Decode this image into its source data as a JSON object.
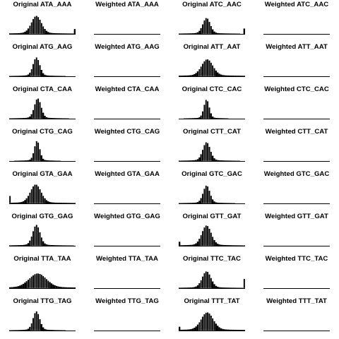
{
  "chart_data": {
    "type": "bar",
    "grid": false,
    "x_domain": [
      0,
      1
    ],
    "column_prefixes": [
      "Original",
      "Weighted",
      "Original",
      "Weighted"
    ],
    "codon_pairs": [
      [
        "ATA_AAA",
        "ATC_AAC"
      ],
      [
        "ATG_AAG",
        "ATT_AAT"
      ],
      [
        "CTA_CAA",
        "CTC_CAC"
      ],
      [
        "CTG_CAG",
        "CTT_CAT"
      ],
      [
        "GTA_GAA",
        "GTC_GAC"
      ],
      [
        "GTG_GAG",
        "GTT_GAT"
      ],
      [
        "TTA_TAA",
        "TTC_TAC"
      ],
      [
        "TTG_TAG",
        "TTT_TAT"
      ]
    ],
    "panels": [
      {
        "title": "Original ATA_AAA",
        "kind": "original",
        "peak": 0.41,
        "width": 0.075,
        "height": 0.62,
        "base": 0.006,
        "left_spike": 0,
        "right_spike": 0.18
      },
      {
        "title": "Weighted ATA_AAA",
        "kind": "weighted"
      },
      {
        "title": "Original ATC_AAC",
        "kind": "original",
        "peak": 0.42,
        "width": 0.055,
        "height": 0.55,
        "base": 0.006,
        "left_spike": 0,
        "right_spike": 0.2
      },
      {
        "title": "Weighted ATC_AAC",
        "kind": "weighted"
      },
      {
        "title": "Original ATG_AAG",
        "kind": "original",
        "peak": 0.41,
        "width": 0.05,
        "height": 0.65,
        "base": 0.005,
        "left_spike": 0,
        "right_spike": 0
      },
      {
        "title": "Weighted ATG_AAG",
        "kind": "weighted"
      },
      {
        "title": "Original ATT_AAT",
        "kind": "original",
        "peak": 0.43,
        "width": 0.085,
        "height": 0.58,
        "base": 0.01,
        "left_spike": 0,
        "right_spike": 0
      },
      {
        "title": "Weighted ATT_AAT",
        "kind": "weighted"
      },
      {
        "title": "Original CTA_CAA",
        "kind": "original",
        "peak": 0.43,
        "width": 0.05,
        "height": 0.7,
        "base": 0.005,
        "left_spike": 0,
        "right_spike": 0
      },
      {
        "title": "Weighted CTA_CAA",
        "kind": "weighted"
      },
      {
        "title": "Original CTC_CAC",
        "kind": "original",
        "peak": 0.42,
        "width": 0.04,
        "height": 0.66,
        "base": 0.004,
        "left_spike": 0,
        "right_spike": 0
      },
      {
        "title": "Weighted CTC_CAC",
        "kind": "weighted"
      },
      {
        "title": "Original CTG_CAG",
        "kind": "original",
        "peak": 0.42,
        "width": 0.04,
        "height": 0.7,
        "base": 0.004,
        "left_spike": 0,
        "right_spike": 0
      },
      {
        "title": "Weighted CTG_CAG",
        "kind": "weighted"
      },
      {
        "title": "Original CTT_CAT",
        "kind": "original",
        "peak": 0.42,
        "width": 0.055,
        "height": 0.65,
        "base": 0.005,
        "left_spike": 0,
        "right_spike": 0
      },
      {
        "title": "Weighted CTT_CAT",
        "kind": "weighted"
      },
      {
        "title": "Original GTA_GAA",
        "kind": "original",
        "peak": 0.4,
        "width": 0.08,
        "height": 0.65,
        "base": 0.008,
        "left_spike": 0.28,
        "right_spike": 0
      },
      {
        "title": "Weighted GTA_GAA",
        "kind": "weighted"
      },
      {
        "title": "Original GTC_GAC",
        "kind": "original",
        "peak": 0.42,
        "width": 0.05,
        "height": 0.62,
        "base": 0.005,
        "left_spike": 0,
        "right_spike": 0
      },
      {
        "title": "Weighted GTC_GAC",
        "kind": "weighted"
      },
      {
        "title": "Original GTG_GAG",
        "kind": "original",
        "peak": 0.41,
        "width": 0.055,
        "height": 0.72,
        "base": 0.006,
        "left_spike": 0,
        "right_spike": 0
      },
      {
        "title": "Weighted GTG_GAG",
        "kind": "weighted"
      },
      {
        "title": "Original GTT_GAT",
        "kind": "original",
        "peak": 0.42,
        "width": 0.07,
        "height": 0.7,
        "base": 0.006,
        "left_spike": 0.15,
        "right_spike": 0
      },
      {
        "title": "Weighted GTT_GAT",
        "kind": "weighted"
      },
      {
        "title": "Original TTA_TAA",
        "kind": "original",
        "peak": 0.43,
        "width": 0.13,
        "height": 0.5,
        "base": 0.012,
        "left_spike": 0,
        "right_spike": 0
      },
      {
        "title": "Weighted TTA_TAA",
        "kind": "weighted"
      },
      {
        "title": "Original TTC_TAC",
        "kind": "original",
        "peak": 0.42,
        "width": 0.065,
        "height": 0.58,
        "base": 0.006,
        "left_spike": 0,
        "right_spike": 0.35
      },
      {
        "title": "Weighted TTC_TAC",
        "kind": "weighted"
      },
      {
        "title": "Original TTG_TAG",
        "kind": "original",
        "peak": 0.41,
        "width": 0.05,
        "height": 0.66,
        "base": 0.005,
        "left_spike": 0,
        "right_spike": 0
      },
      {
        "title": "Weighted TTG_TAG",
        "kind": "weighted"
      },
      {
        "title": "Original TTT_TAT",
        "kind": "original",
        "peak": 0.43,
        "width": 0.09,
        "height": 0.62,
        "base": 0.012,
        "left_spike": 0.14,
        "right_spike": 0
      },
      {
        "title": "Weighted TTT_TAT",
        "kind": "weighted"
      }
    ]
  }
}
